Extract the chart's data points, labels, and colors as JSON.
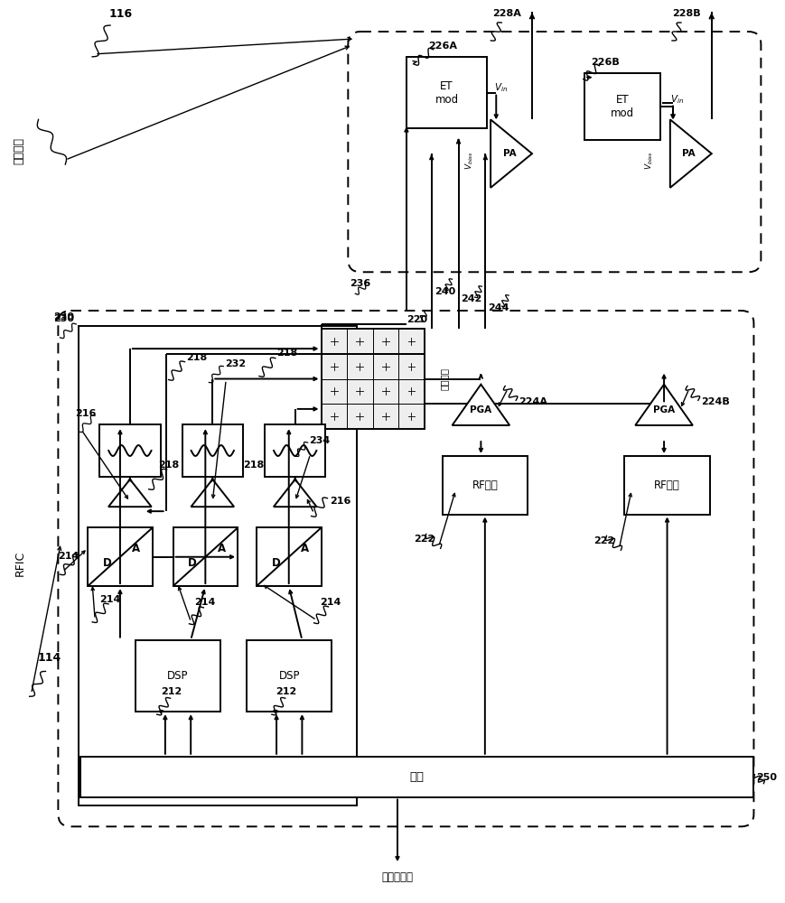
{
  "bg_color": "#ffffff",
  "fig_width": 8.7,
  "fig_height": 10.0,
  "labels": {
    "front_end": "前端模块",
    "rfic": "RFIC",
    "bus": "总线",
    "clock_bus": "时钟总线口",
    "switch_matrix": "开关矩阵",
    "rf_path": "RF路径",
    "et_mod": "ET\nmod",
    "pa": "PA",
    "dsp": "DSP",
    "da": "D   A",
    "pga": "PGA",
    "n116": "116",
    "n114": "114",
    "n212": "212",
    "n214": "214",
    "n216": "216",
    "n218": "218",
    "n220": "220",
    "n222": "222",
    "n224a": "224A",
    "n224b": "224B",
    "n226a": "226A",
    "n226b": "226B",
    "n228a": "228A",
    "n228b": "228B",
    "n230": "230",
    "n232": "232",
    "n234": "234",
    "n236": "236",
    "n240": "240",
    "n242": "242",
    "n244": "244",
    "n250": "250"
  }
}
